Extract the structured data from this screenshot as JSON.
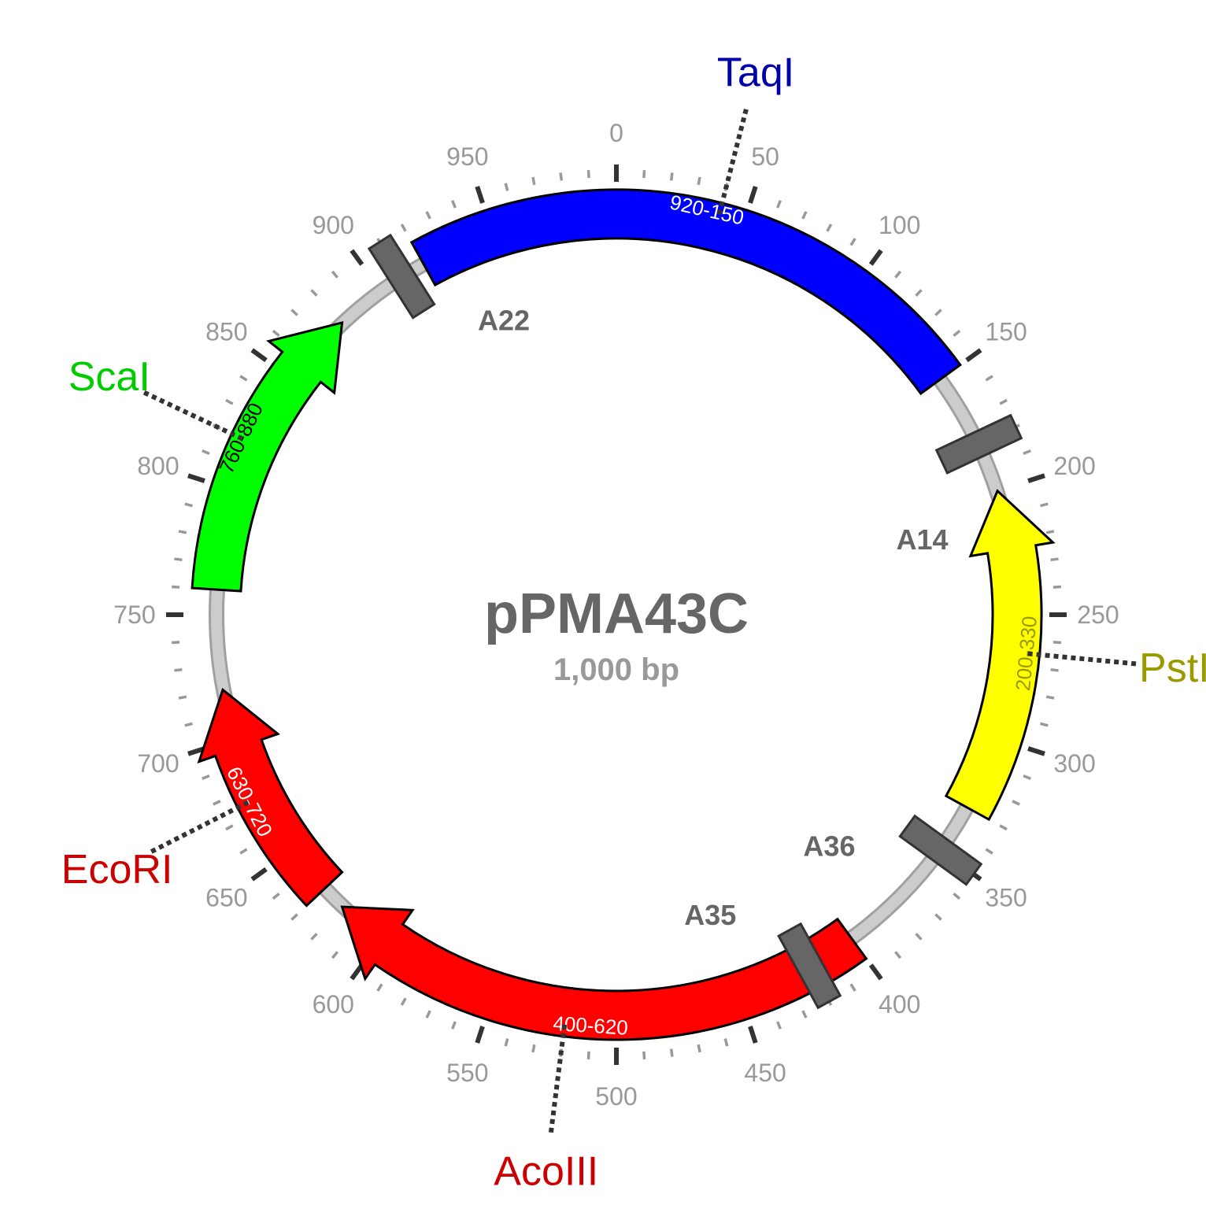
{
  "plasmid": {
    "name": "pPMA43C",
    "size_label": "1,000 bp",
    "length": 1000
  },
  "colors": {
    "backbone": "#cccccc",
    "backbone_edge": "#a0a0a0",
    "major_tick": "#333333",
    "minor_tick": "#999999",
    "tick_label": "#999999",
    "marker": "#666666",
    "leader": "#333333"
  },
  "tick_labels": [
    "0",
    "50",
    "100",
    "150",
    "200",
    "250",
    "300",
    "350",
    "400",
    "450",
    "500",
    "550",
    "600",
    "650",
    "700",
    "750",
    "800",
    "850",
    "900",
    "950"
  ],
  "features": [
    {
      "id": "taqi",
      "range_label": "920-150",
      "start": 920,
      "end": 150,
      "direction": "none",
      "color": "#0000ff",
      "range_label_color": "#ffffff"
    },
    {
      "id": "psti",
      "range_label": "200-330",
      "start": 200,
      "end": 330,
      "direction": "reverse",
      "color": "#ffff00",
      "range_label_color": "#999900"
    },
    {
      "id": "acoiii",
      "range_label": "400-620",
      "start": 400,
      "end": 620,
      "direction": "forward",
      "color": "#ff0000",
      "range_label_color": "#ffffff"
    },
    {
      "id": "ecori",
      "range_label": "630-720",
      "start": 630,
      "end": 720,
      "direction": "forward",
      "color": "#ff0000",
      "range_label_color": "#ffffff"
    },
    {
      "id": "scai",
      "range_label": "760-880",
      "start": 760,
      "end": 880,
      "direction": "forward",
      "color": "#00ff00",
      "range_label_color": "#000000"
    }
  ],
  "sites": [
    {
      "name": "TaqI",
      "position": 40,
      "color": "#0000aa"
    },
    {
      "name": "PstI",
      "position": 265,
      "color": "#999900"
    },
    {
      "name": "AcoIII",
      "position": 520,
      "color": "#cc0000"
    },
    {
      "name": "EcoRI",
      "position": 675,
      "color": "#cc0000"
    },
    {
      "name": "ScaI",
      "position": 820,
      "color": "#00cc00"
    }
  ],
  "markers": [
    {
      "name": "A14",
      "position": 180
    },
    {
      "name": "A36",
      "position": 350
    },
    {
      "name": "A35",
      "position": 420
    },
    {
      "name": "A22",
      "position": 910
    }
  ]
}
